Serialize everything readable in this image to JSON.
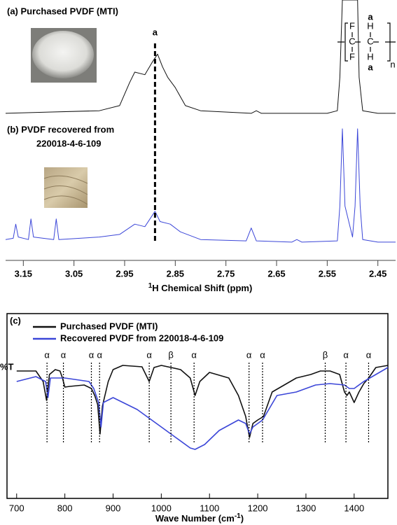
{
  "chart_data": [
    {
      "type": "line",
      "xlabel_sup": "1",
      "xlabel": "H Chemical Shift (ppm)",
      "xlim": [
        3.185,
        2.415
      ],
      "xticks": [
        3.15,
        3.05,
        2.95,
        2.85,
        2.75,
        2.65,
        2.55,
        2.45
      ],
      "ylim": [
        0,
        100
      ],
      "annotations": [
        {
          "text": "(a) Purchased PVDF (MTI)",
          "color": "#000000"
        },
        {
          "text": "(b) PVDF recovered from",
          "color": "#3b46d8"
        },
        {
          "text": "220018-4-6-109",
          "color": "#3b46d8"
        }
      ],
      "peak_marker": {
        "x": 2.89,
        "label": "a"
      },
      "structure_labels": [
        "F",
        "C",
        "F",
        "a",
        "H",
        "C",
        "H",
        "a",
        "n"
      ],
      "series": [
        {
          "color": "#111111",
          "x": [
            3.185,
            3.1,
            3.0,
            2.96,
            2.94,
            2.93,
            2.91,
            2.895,
            2.885,
            2.875,
            2.865,
            2.85,
            2.83,
            2.8,
            2.7,
            2.69,
            2.68,
            2.55,
            2.53,
            2.525,
            2.52,
            2.49,
            2.487,
            2.48,
            2.45,
            2.415
          ],
          "values": [
            56,
            56.5,
            57,
            59,
            68,
            72,
            71,
            76,
            79,
            74,
            70,
            66,
            59,
            57,
            56,
            57,
            56,
            56,
            57,
            70,
            100,
            100,
            70,
            57,
            56,
            56
          ]
        },
        {
          "color": "#3b46d8",
          "x": [
            3.185,
            3.17,
            3.165,
            3.16,
            3.14,
            3.135,
            3.13,
            3.09,
            3.085,
            3.08,
            3.0,
            2.96,
            2.93,
            2.91,
            2.89,
            2.88,
            2.86,
            2.84,
            2.8,
            2.71,
            2.7,
            2.69,
            2.62,
            2.61,
            2.6,
            2.53,
            2.525,
            2.52,
            2.515,
            2.5,
            2.495,
            2.49,
            2.485,
            2.48,
            2.45,
            2.415
          ],
          "values": [
            7,
            7.5,
            13,
            8,
            7,
            15,
            8,
            7,
            15,
            7,
            8,
            9,
            13,
            12,
            18,
            14,
            13,
            10,
            7,
            6.5,
            11.5,
            6.5,
            6,
            7,
            6,
            6.5,
            20,
            50,
            20,
            8,
            20,
            50,
            20,
            7,
            6,
            6
          ]
        }
      ]
    },
    {
      "type": "line",
      "panel_label": "(c)",
      "ylabel": "%T",
      "xlabel": "Wave Number (cm",
      "xlabel_sup": "-1",
      "xlabel_end": ")",
      "xlim": [
        680,
        1470
      ],
      "xticks": [
        700,
        800,
        900,
        1000,
        1100,
        1200,
        1300,
        1400
      ],
      "ylim": [
        0,
        100
      ],
      "peaks": [
        {
          "x": 763,
          "label": "α"
        },
        {
          "x": 797,
          "label": "α"
        },
        {
          "x": 855,
          "label": "α"
        },
        {
          "x": 872,
          "label": "α"
        },
        {
          "x": 975,
          "label": "α"
        },
        {
          "x": 1020,
          "label": "β"
        },
        {
          "x": 1068,
          "label": "α"
        },
        {
          "x": 1182,
          "label": "α"
        },
        {
          "x": 1210,
          "label": "α"
        },
        {
          "x": 1340,
          "label": "β"
        },
        {
          "x": 1383,
          "label": "α"
        },
        {
          "x": 1430,
          "label": "α"
        }
      ],
      "series": [
        {
          "name": "Purchased PVDF (MTI)",
          "color": "#111111",
          "x": [
            700,
            740,
            755,
            762,
            768,
            780,
            790,
            795,
            800,
            810,
            840,
            855,
            862,
            868,
            873,
            878,
            890,
            900,
            920,
            960,
            975,
            985,
            1000,
            1040,
            1060,
            1070,
            1080,
            1100,
            1140,
            1160,
            1175,
            1183,
            1190,
            1200,
            1212,
            1230,
            1280,
            1310,
            1330,
            1350,
            1370,
            1380,
            1385,
            1390,
            1400,
            1410,
            1420,
            1430,
            1445,
            1470
          ],
          "values": [
            72.8,
            72.8,
            66.8,
            56,
            70.8,
            73.6,
            72.8,
            68.8,
            63.6,
            64,
            64.8,
            62.8,
            58.8,
            53.6,
            36.8,
            52.8,
            66.8,
            73.6,
            76,
            75.2,
            66.8,
            74.8,
            76,
            73.6,
            68.8,
            58.8,
            66.8,
            72,
            68.8,
            58.8,
            46.8,
            34.8,
            42.8,
            44.8,
            46.8,
            60.8,
            68.8,
            70.8,
            72.8,
            72.8,
            70.8,
            60.8,
            58.8,
            60.8,
            54.8,
            60.8,
            65.6,
            68.8,
            74.8,
            76
          ]
        },
        {
          "name": "Recovered PVDF from 220018-4-6-109",
          "color": "#3b46d8",
          "x": [
            700,
            740,
            760,
            765,
            770,
            800,
            850,
            860,
            870,
            875,
            880,
            900,
            950,
            1000,
            1030,
            1060,
            1070,
            1090,
            1120,
            1160,
            1175,
            1183,
            1190,
            1210,
            1240,
            1280,
            1320,
            1350,
            1380,
            1390,
            1400,
            1420,
            1470
          ],
          "values": [
            66.8,
            69.6,
            66.8,
            57.6,
            68.8,
            68.8,
            66.8,
            62.8,
            54.8,
            40.8,
            54.8,
            57.6,
            50.8,
            40.8,
            34.8,
            28.8,
            28,
            30.8,
            38.8,
            44.8,
            42.8,
            36.8,
            40.8,
            44.8,
            58.8,
            60.8,
            64.8,
            65.6,
            64.8,
            62.8,
            62.8,
            66.8,
            74.8
          ]
        }
      ]
    }
  ]
}
